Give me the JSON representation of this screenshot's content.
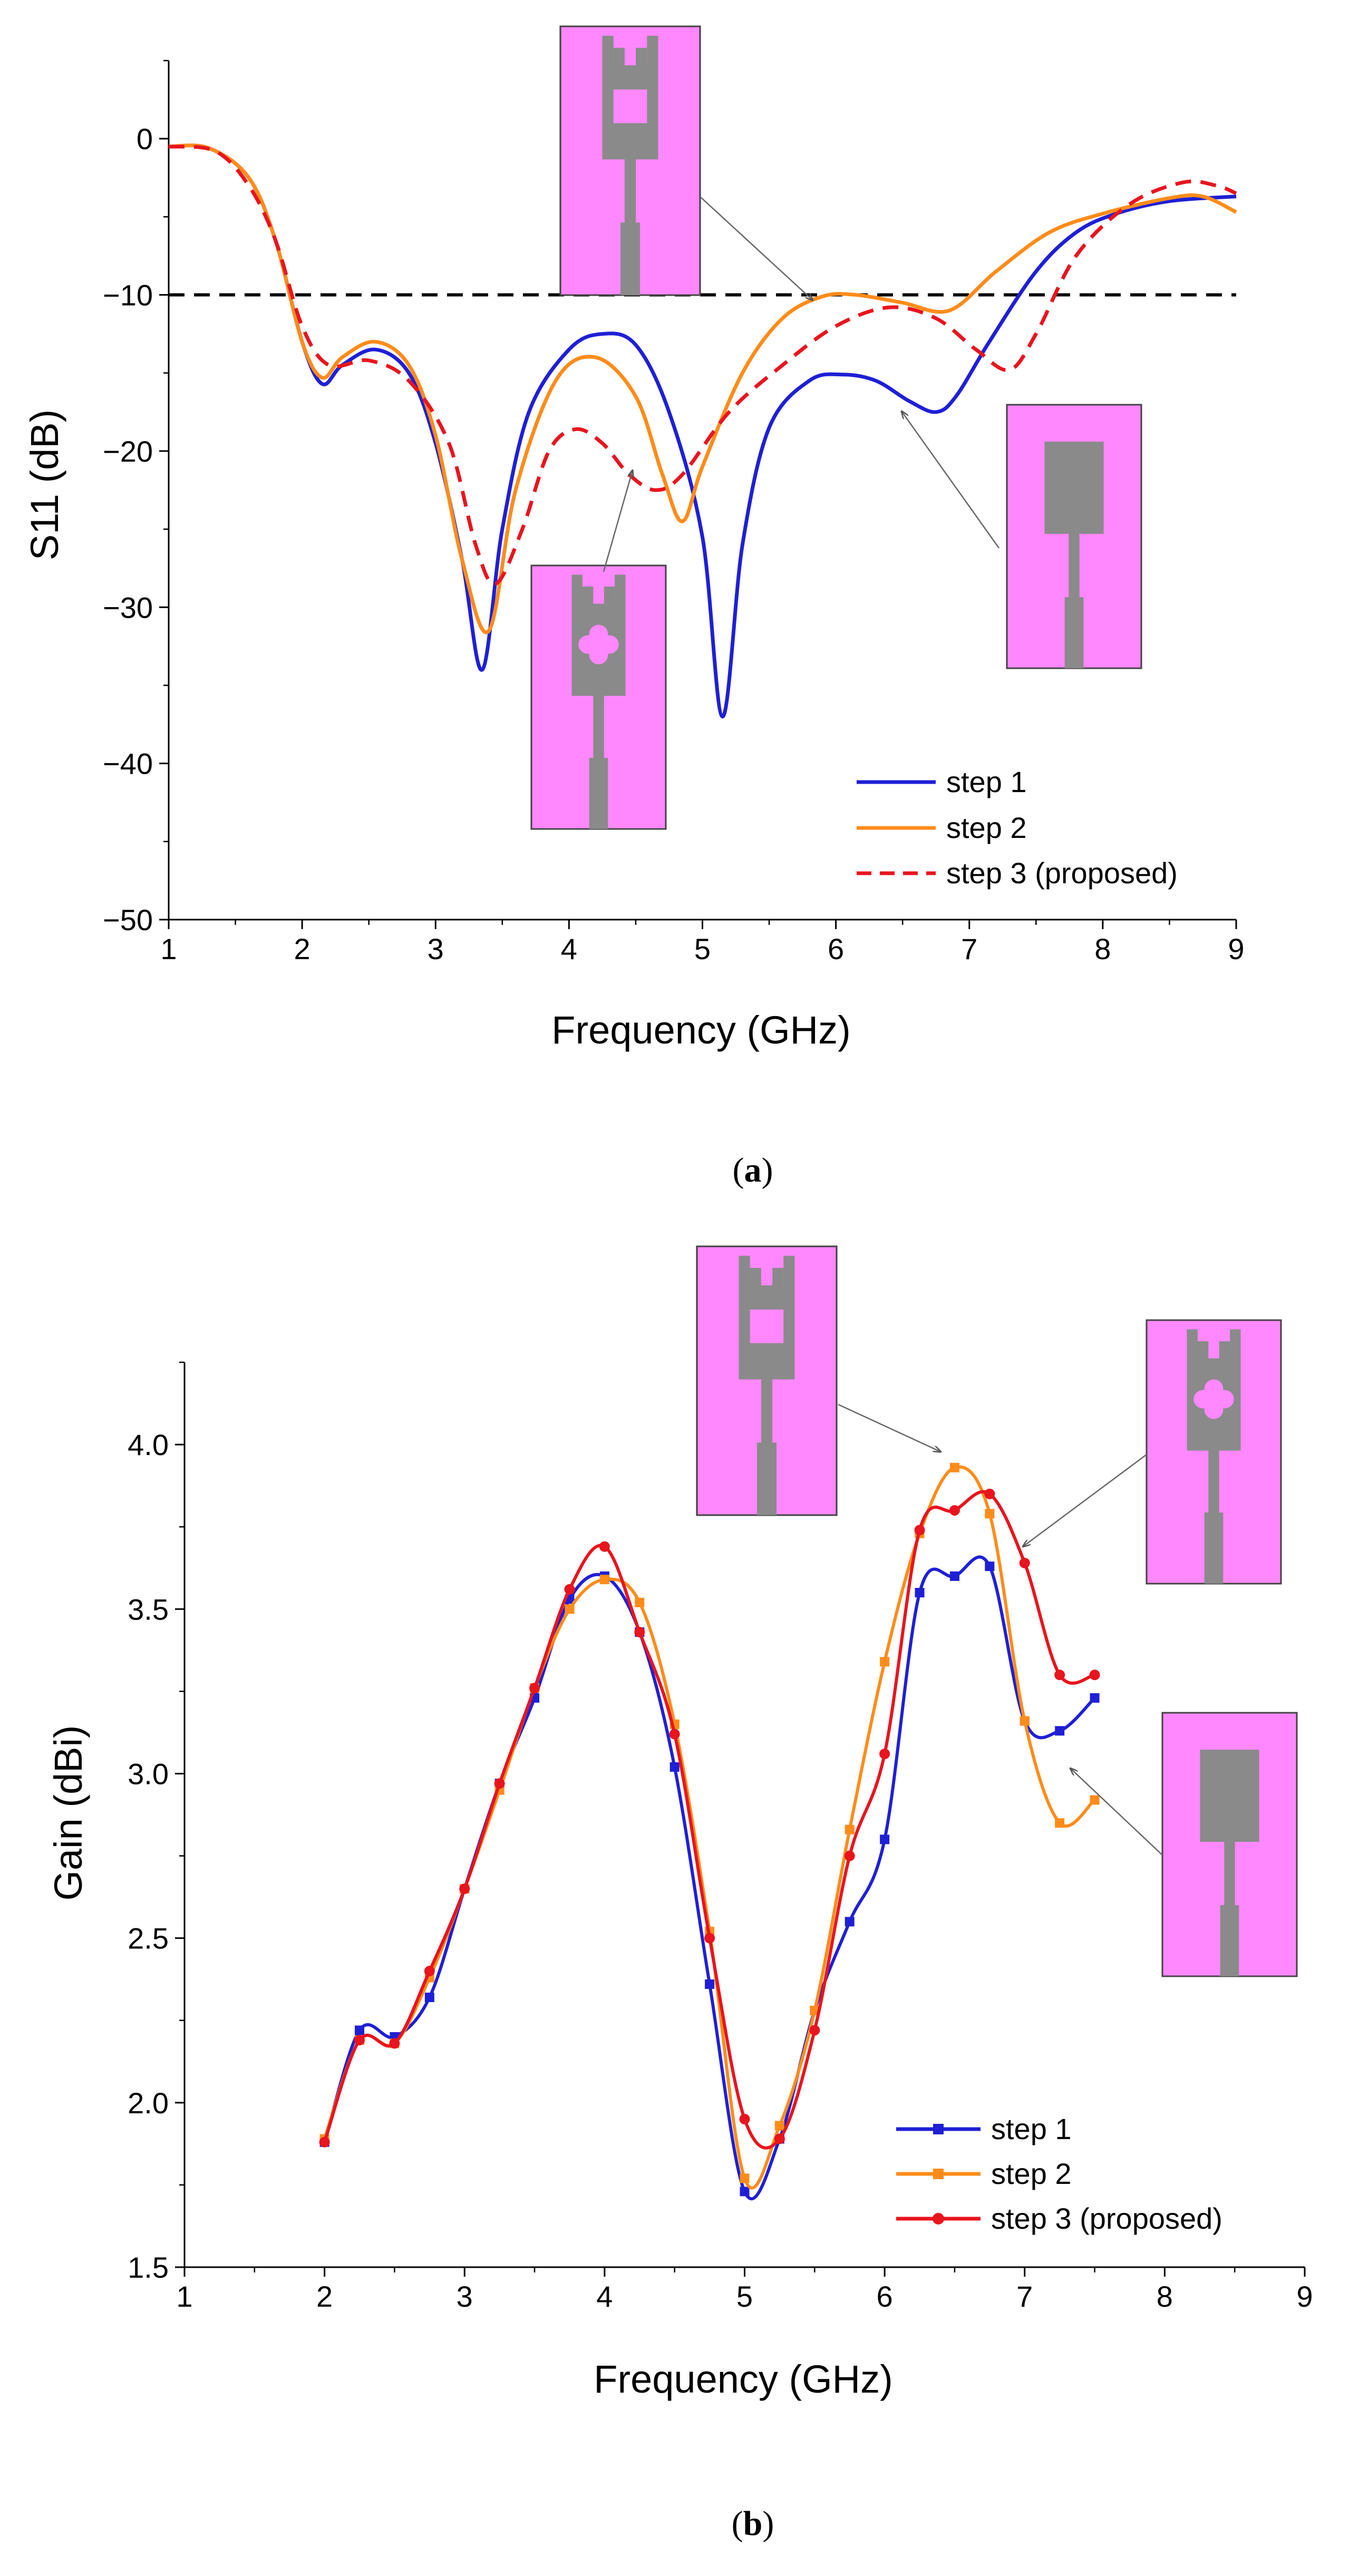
{
  "chart_data": [
    {
      "type": "line",
      "panel": "a",
      "caption_open": "(",
      "caption_letter": "a",
      "caption_close": ")",
      "xlabel": "Frequency (GHz)",
      "ylabel": "S11 (dB)",
      "xlim": [
        1,
        9
      ],
      "ylim": [
        -50,
        5
      ],
      "xticks": [
        "1",
        "2",
        "3",
        "4",
        "5",
        "6",
        "7",
        "8",
        "9"
      ],
      "yticks": [
        "0",
        "−10",
        "−20",
        "−30",
        "−40",
        "−50"
      ],
      "xtick_values": [
        1,
        2,
        3,
        4,
        5,
        6,
        7,
        8,
        9
      ],
      "ytick_values": [
        0,
        -10,
        -20,
        -30,
        -40,
        -50
      ],
      "reference_line": {
        "y": -10,
        "style": "dashed",
        "color": "#000000"
      },
      "legend_position": "bottom-right",
      "series": [
        {
          "name": "step 1",
          "color": "#1f1fd6",
          "style": "solid",
          "points": [
            [
              1.0,
              -0.5
            ],
            [
              1.3,
              -0.6
            ],
            [
              1.6,
              -2.5
            ],
            [
              1.8,
              -6.5
            ],
            [
              2.0,
              -13.0
            ],
            [
              2.15,
              -15.7
            ],
            [
              2.3,
              -14.5
            ],
            [
              2.55,
              -13.5
            ],
            [
              2.8,
              -15.0
            ],
            [
              3.0,
              -19.5
            ],
            [
              3.2,
              -27.0
            ],
            [
              3.35,
              -34.0
            ],
            [
              3.5,
              -25.0
            ],
            [
              3.7,
              -17.5
            ],
            [
              4.0,
              -13.5
            ],
            [
              4.25,
              -12.5
            ],
            [
              4.5,
              -13.2
            ],
            [
              4.75,
              -17.5
            ],
            [
              5.0,
              -25.5
            ],
            [
              5.15,
              -37.0
            ],
            [
              5.3,
              -26.0
            ],
            [
              5.5,
              -18.5
            ],
            [
              5.8,
              -15.5
            ],
            [
              6.05,
              -15.1
            ],
            [
              6.3,
              -15.5
            ],
            [
              6.55,
              -16.8
            ],
            [
              6.75,
              -17.5
            ],
            [
              6.9,
              -16.5
            ],
            [
              7.15,
              -13.0
            ],
            [
              7.5,
              -8.5
            ],
            [
              7.8,
              -6.0
            ],
            [
              8.1,
              -4.8
            ],
            [
              8.5,
              -4.0
            ],
            [
              9.0,
              -3.7
            ]
          ]
        },
        {
          "name": "step 2",
          "color": "#ff8c1a",
          "style": "solid",
          "points": [
            [
              1.0,
              -0.5
            ],
            [
              1.3,
              -0.6
            ],
            [
              1.6,
              -2.5
            ],
            [
              1.8,
              -6.5
            ],
            [
              2.0,
              -13.0
            ],
            [
              2.15,
              -15.3
            ],
            [
              2.3,
              -14.0
            ],
            [
              2.55,
              -13.0
            ],
            [
              2.8,
              -14.5
            ],
            [
              3.0,
              -19.0
            ],
            [
              3.2,
              -27.0
            ],
            [
              3.4,
              -31.5
            ],
            [
              3.6,
              -22.5
            ],
            [
              3.9,
              -15.5
            ],
            [
              4.2,
              -14.0
            ],
            [
              4.5,
              -16.5
            ],
            [
              4.7,
              -21.5
            ],
            [
              4.85,
              -24.5
            ],
            [
              5.0,
              -21.0
            ],
            [
              5.3,
              -15.0
            ],
            [
              5.6,
              -11.5
            ],
            [
              5.9,
              -10.1
            ],
            [
              6.15,
              -10.0
            ],
            [
              6.5,
              -10.5
            ],
            [
              6.85,
              -11.0
            ],
            [
              7.2,
              -8.5
            ],
            [
              7.6,
              -6.0
            ],
            [
              8.0,
              -4.8
            ],
            [
              8.5,
              -3.8
            ],
            [
              8.75,
              -3.7
            ],
            [
              9.0,
              -4.7
            ]
          ]
        },
        {
          "name": "step 3 (proposed)",
          "color": "#e8141e",
          "style": "dashed",
          "points": [
            [
              1.0,
              -0.5
            ],
            [
              1.35,
              -0.8
            ],
            [
              1.6,
              -3.0
            ],
            [
              1.8,
              -6.5
            ],
            [
              2.0,
              -12.0
            ],
            [
              2.2,
              -14.5
            ],
            [
              2.5,
              -14.2
            ],
            [
              2.8,
              -15.5
            ],
            [
              3.1,
              -19.5
            ],
            [
              3.3,
              -26.0
            ],
            [
              3.45,
              -28.5
            ],
            [
              3.65,
              -25.0
            ],
            [
              3.85,
              -20.0
            ],
            [
              4.05,
              -18.6
            ],
            [
              4.25,
              -19.5
            ],
            [
              4.45,
              -21.5
            ],
            [
              4.65,
              -22.5
            ],
            [
              4.85,
              -21.5
            ],
            [
              5.2,
              -17.5
            ],
            [
              5.6,
              -14.5
            ],
            [
              6.0,
              -12.0
            ],
            [
              6.4,
              -10.8
            ],
            [
              6.75,
              -11.5
            ],
            [
              7.05,
              -13.5
            ],
            [
              7.3,
              -14.8
            ],
            [
              7.5,
              -12.5
            ],
            [
              7.8,
              -7.5
            ],
            [
              8.2,
              -4.2
            ],
            [
              8.6,
              -2.8
            ],
            [
              8.85,
              -3.0
            ],
            [
              9.0,
              -3.5
            ]
          ]
        }
      ],
      "insets": [
        {
          "design": "step 2",
          "fill": "#ff88ff",
          "patch": "#8a8a8a"
        },
        {
          "design": "step 3 (proposed)",
          "fill": "#ff88ff",
          "patch": "#8a8a8a"
        },
        {
          "design": "step 1",
          "fill": "#ff88ff",
          "patch": "#8a8a8a"
        }
      ]
    },
    {
      "type": "line",
      "panel": "b",
      "caption_open": "(",
      "caption_letter": "b",
      "caption_close": ")",
      "xlabel": "Frequency (GHz)",
      "ylabel": "Gain (dBi)",
      "xlim": [
        1,
        9
      ],
      "ylim": [
        1.5,
        4.25
      ],
      "xticks": [
        "1",
        "2",
        "3",
        "4",
        "5",
        "6",
        "7",
        "8",
        "9"
      ],
      "yticks": [
        "1.5",
        "2.0",
        "2.5",
        "3.0",
        "3.5",
        "4.0"
      ],
      "xtick_values": [
        1,
        2,
        3,
        4,
        5,
        6,
        7,
        8,
        9
      ],
      "ytick_values": [
        1.5,
        2.0,
        2.5,
        3.0,
        3.5,
        4.0
      ],
      "legend_position": "bottom-right",
      "series": [
        {
          "name": "step 1",
          "color": "#1f1fd6",
          "marker": "square",
          "points": [
            [
              2.0,
              1.88
            ],
            [
              2.25,
              2.22
            ],
            [
              2.5,
              2.2
            ],
            [
              2.75,
              2.32
            ],
            [
              3.0,
              2.65
            ],
            [
              3.25,
              2.97
            ],
            [
              3.5,
              3.23
            ],
            [
              3.75,
              3.53
            ],
            [
              4.0,
              3.6
            ],
            [
              4.25,
              3.43
            ],
            [
              4.5,
              3.02
            ],
            [
              4.75,
              2.36
            ],
            [
              5.0,
              1.73
            ],
            [
              5.25,
              1.89
            ],
            [
              5.5,
              2.28
            ],
            [
              5.75,
              2.55
            ],
            [
              6.0,
              2.8
            ],
            [
              6.25,
              3.55
            ],
            [
              6.5,
              3.6
            ],
            [
              6.75,
              3.63
            ],
            [
              7.0,
              3.16
            ],
            [
              7.25,
              3.13
            ],
            [
              7.5,
              3.23
            ]
          ]
        },
        {
          "name": "step 2",
          "color": "#ff8c1a",
          "marker": "square",
          "points": [
            [
              2.0,
              1.89
            ],
            [
              2.25,
              2.19
            ],
            [
              2.5,
              2.18
            ],
            [
              2.75,
              2.38
            ],
            [
              3.0,
              2.65
            ],
            [
              3.25,
              2.95
            ],
            [
              3.5,
              3.26
            ],
            [
              3.75,
              3.5
            ],
            [
              4.0,
              3.59
            ],
            [
              4.25,
              3.52
            ],
            [
              4.5,
              3.15
            ],
            [
              4.75,
              2.52
            ],
            [
              5.0,
              1.77
            ],
            [
              5.25,
              1.93
            ],
            [
              5.5,
              2.28
            ],
            [
              5.75,
              2.83
            ],
            [
              6.0,
              3.34
            ],
            [
              6.25,
              3.73
            ],
            [
              6.5,
              3.93
            ],
            [
              6.75,
              3.79
            ],
            [
              7.0,
              3.16
            ],
            [
              7.25,
              2.85
            ],
            [
              7.5,
              2.92
            ]
          ]
        },
        {
          "name": "step 3 (proposed)",
          "color": "#e8141e",
          "marker": "circle",
          "points": [
            [
              2.0,
              1.88
            ],
            [
              2.25,
              2.19
            ],
            [
              2.5,
              2.18
            ],
            [
              2.75,
              2.4
            ],
            [
              3.0,
              2.65
            ],
            [
              3.25,
              2.97
            ],
            [
              3.5,
              3.26
            ],
            [
              3.75,
              3.56
            ],
            [
              4.0,
              3.69
            ],
            [
              4.25,
              3.43
            ],
            [
              4.5,
              3.12
            ],
            [
              4.75,
              2.5
            ],
            [
              5.0,
              1.95
            ],
            [
              5.25,
              1.89
            ],
            [
              5.5,
              2.22
            ],
            [
              5.75,
              2.75
            ],
            [
              6.0,
              3.06
            ],
            [
              6.25,
              3.74
            ],
            [
              6.5,
              3.8
            ],
            [
              6.75,
              3.85
            ],
            [
              7.0,
              3.64
            ],
            [
              7.25,
              3.3
            ],
            [
              7.5,
              3.3
            ]
          ]
        }
      ],
      "insets": [
        {
          "design": "step 2",
          "fill": "#ff88ff",
          "patch": "#8a8a8a"
        },
        {
          "design": "step 3 (proposed)",
          "fill": "#ff88ff",
          "patch": "#8a8a8a"
        },
        {
          "design": "step 1",
          "fill": "#ff88ff",
          "patch": "#8a8a8a"
        }
      ]
    }
  ]
}
